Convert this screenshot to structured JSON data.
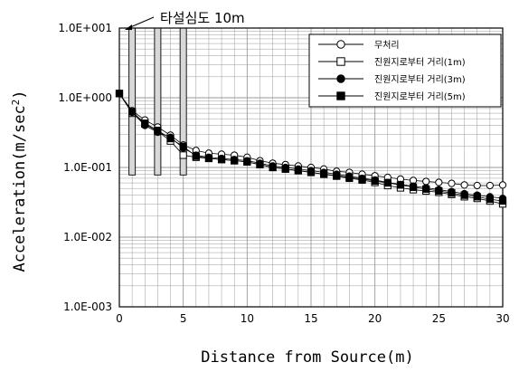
{
  "chart_data": {
    "type": "scatter",
    "xlabel": "Distance from Source(m)",
    "ylabel_main": "Acceleration(m/sec",
    "ylabel_sup": "2",
    "ylabel_close": ")",
    "xlim": [
      0,
      30
    ],
    "ylim": [
      0.001,
      10
    ],
    "y_scale": "log",
    "grid": true,
    "legend_position": "top-right",
    "x_ticks": [
      "0",
      "5",
      "10",
      "15",
      "20",
      "25",
      "30"
    ],
    "y_ticks": [
      "1.0E-003",
      "1.0E-002",
      "1.0E-001",
      "1.0E+000",
      "1.0E+001"
    ],
    "annotation": "타설심도 10m",
    "barriers": [
      {
        "x": 1,
        "y_bottom": 0.078,
        "y_top": 10
      },
      {
        "x": 3,
        "y_bottom": 0.078,
        "y_top": 10
      },
      {
        "x": 5,
        "y_bottom": 0.078,
        "y_top": 10
      }
    ],
    "x": [
      0,
      1,
      2,
      3,
      4,
      5,
      6,
      7,
      8,
      9,
      10,
      11,
      12,
      13,
      14,
      15,
      16,
      17,
      18,
      19,
      20,
      21,
      22,
      23,
      24,
      25,
      26,
      27,
      28,
      29,
      30
    ],
    "series": [
      {
        "name": "무처리",
        "marker": "open-circle",
        "values": [
          1.15,
          0.65,
          0.48,
          0.38,
          0.29,
          0.21,
          0.175,
          0.16,
          0.155,
          0.15,
          0.14,
          0.125,
          0.115,
          0.11,
          0.105,
          0.1,
          0.095,
          0.088,
          0.085,
          0.08,
          0.076,
          0.072,
          0.068,
          0.065,
          0.063,
          0.061,
          0.059,
          0.056,
          0.055,
          0.055,
          0.056
        ]
      },
      {
        "name": "진원지로부터 거리(1m)",
        "marker": "open-square",
        "values": [
          1.15,
          0.6,
          0.42,
          0.33,
          0.24,
          0.15,
          0.14,
          0.135,
          0.13,
          0.125,
          0.12,
          0.11,
          0.1,
          0.095,
          0.09,
          0.085,
          0.08,
          0.075,
          0.07,
          0.066,
          0.061,
          0.055,
          0.051,
          0.048,
          0.046,
          0.044,
          0.041,
          0.038,
          0.036,
          0.033,
          0.03
        ]
      },
      {
        "name": "진원지로부터 거리(3m)",
        "marker": "filled-circle",
        "values": [
          1.15,
          0.62,
          0.4,
          0.32,
          0.27,
          0.19,
          0.15,
          0.14,
          0.135,
          0.13,
          0.125,
          0.115,
          0.105,
          0.1,
          0.095,
          0.09,
          0.085,
          0.08,
          0.075,
          0.07,
          0.066,
          0.061,
          0.057,
          0.054,
          0.051,
          0.048,
          0.045,
          0.042,
          0.04,
          0.038,
          0.036
        ]
      },
      {
        "name": "진원지로부터 거리(5m)",
        "marker": "filled-square",
        "values": [
          1.15,
          0.63,
          0.43,
          0.34,
          0.26,
          0.2,
          0.145,
          0.135,
          0.13,
          0.125,
          0.12,
          0.11,
          0.1,
          0.095,
          0.09,
          0.085,
          0.08,
          0.076,
          0.072,
          0.068,
          0.064,
          0.06,
          0.056,
          0.052,
          0.049,
          0.046,
          0.043,
          0.04,
          0.038,
          0.035,
          0.033
        ]
      }
    ]
  }
}
